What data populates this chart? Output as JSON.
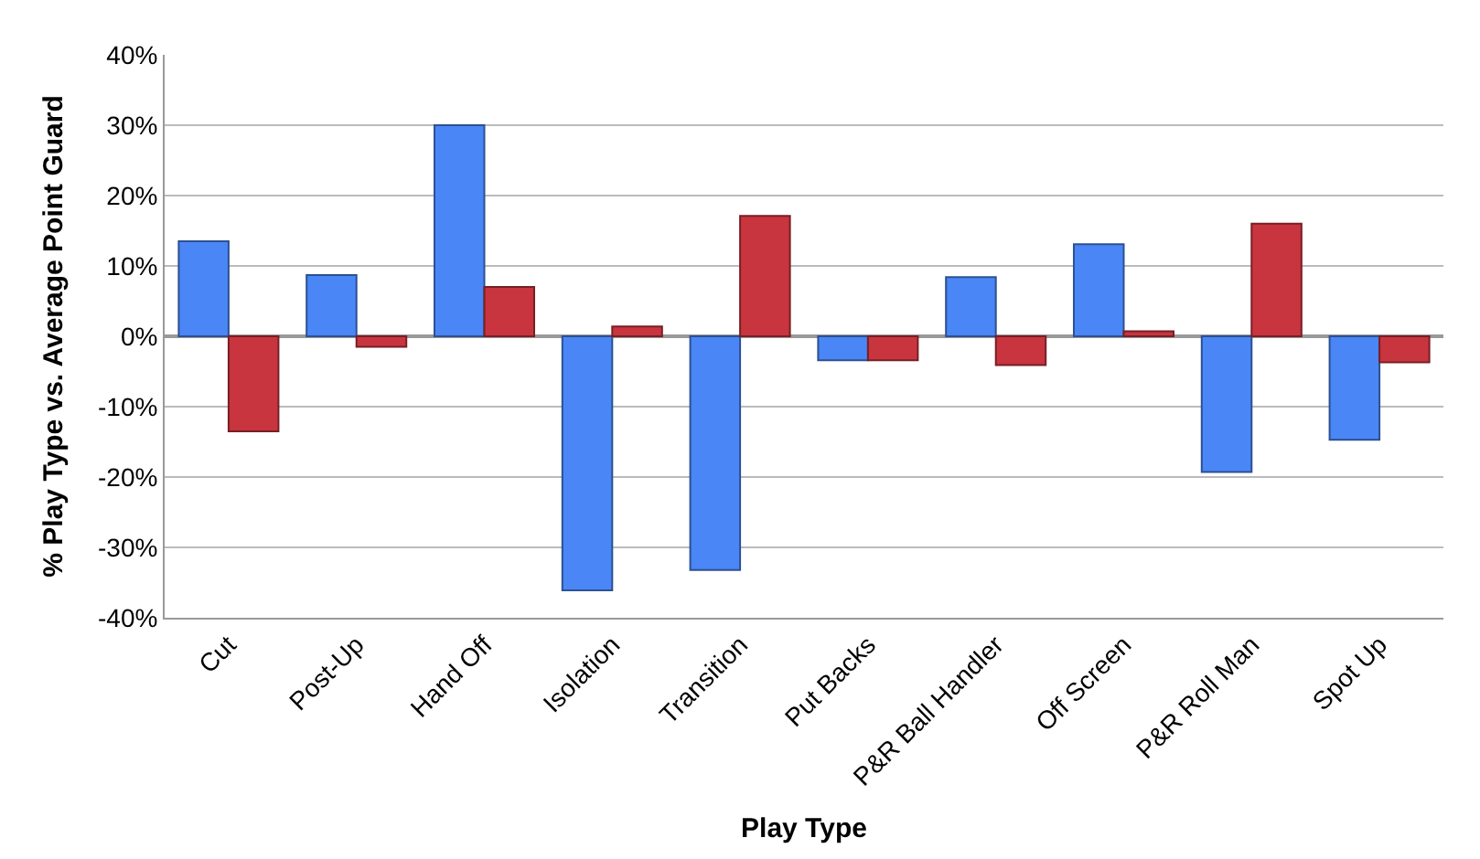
{
  "chart_data": {
    "type": "bar",
    "xlabel": "Play Type",
    "ylabel": "% Play Type vs. Average Point Guard",
    "categories": [
      "Cut",
      "Post-Up",
      "Hand Off",
      "Isolation",
      "Transition",
      "Put Backs",
      "P&R Ball Handler",
      "Off Screen",
      "P&R Roll Man",
      "Spot Up"
    ],
    "series": [
      {
        "color": "#4a86f5",
        "values": [
          13.5,
          8.7,
          30,
          -36.1,
          -33.2,
          -3.4,
          8.4,
          13.1,
          -19.3,
          -14.7
        ]
      },
      {
        "color": "#c8353f",
        "values": [
          -13.5,
          -1.5,
          7.0,
          1.4,
          17.1,
          -3.4,
          -4.1,
          0.7,
          16.0,
          -3.7
        ]
      }
    ],
    "ylim": [
      -40,
      40
    ],
    "yticks": [
      {
        "value": -40,
        "label": "-40%"
      },
      {
        "value": -30,
        "label": "-30%"
      },
      {
        "value": -20,
        "label": "-20%"
      },
      {
        "value": -10,
        "label": "-10%"
      },
      {
        "value": 0,
        "label": "0%"
      },
      {
        "value": 10,
        "label": "10%"
      },
      {
        "value": 20,
        "label": "20%"
      },
      {
        "value": 30,
        "label": "30%"
      },
      {
        "value": 40,
        "label": "40%"
      }
    ],
    "grid": "y",
    "legend": false
  }
}
